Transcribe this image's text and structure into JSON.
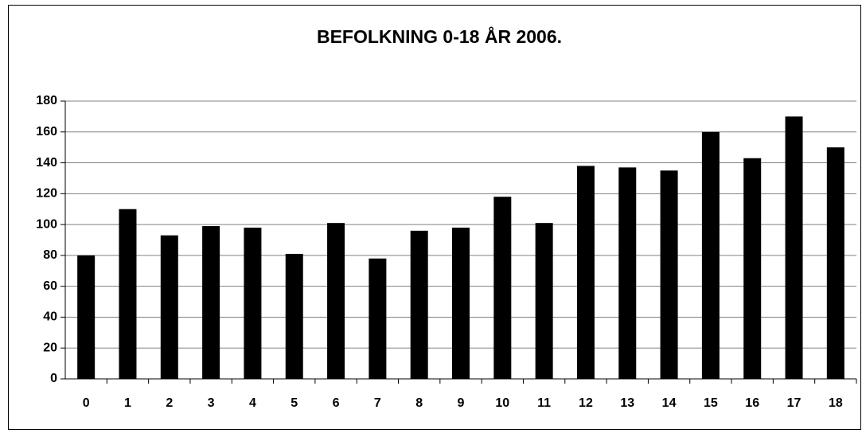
{
  "chart_data": {
    "type": "bar",
    "title": "BEFOLKNING 0-18 ÅR 2006.",
    "categories": [
      "0",
      "1",
      "2",
      "3",
      "4",
      "5",
      "6",
      "7",
      "8",
      "9",
      "10",
      "11",
      "12",
      "13",
      "14",
      "15",
      "16",
      "17",
      "18"
    ],
    "values": [
      80,
      110,
      93,
      99,
      98,
      81,
      101,
      78,
      96,
      98,
      118,
      101,
      138,
      137,
      135,
      160,
      143,
      170,
      150
    ],
    "color": "#000000",
    "ylim": [
      0,
      180
    ],
    "yticks": [
      0,
      20,
      40,
      60,
      80,
      100,
      120,
      140,
      160,
      180
    ],
    "grid": true
  }
}
